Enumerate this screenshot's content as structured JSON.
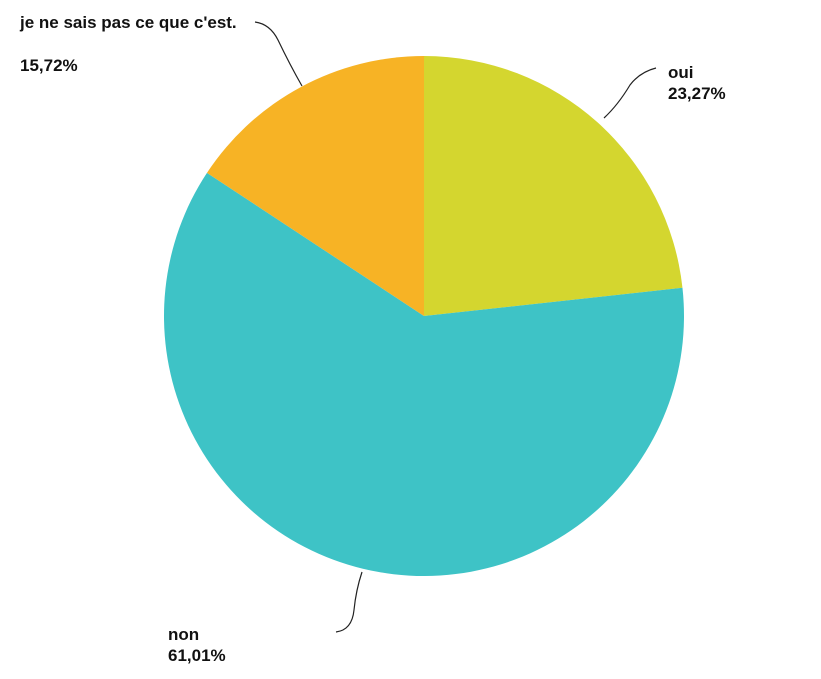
{
  "chart_data": {
    "type": "pie",
    "categories": [
      "oui",
      "non",
      "je ne sais pas ce que c'est."
    ],
    "values": [
      23.27,
      61.01,
      15.72
    ],
    "value_labels": [
      "23,27%",
      "61,01%",
      "15,72%"
    ],
    "colors": [
      "#d4d62f",
      "#3ec3c6",
      "#f7b325"
    ]
  }
}
